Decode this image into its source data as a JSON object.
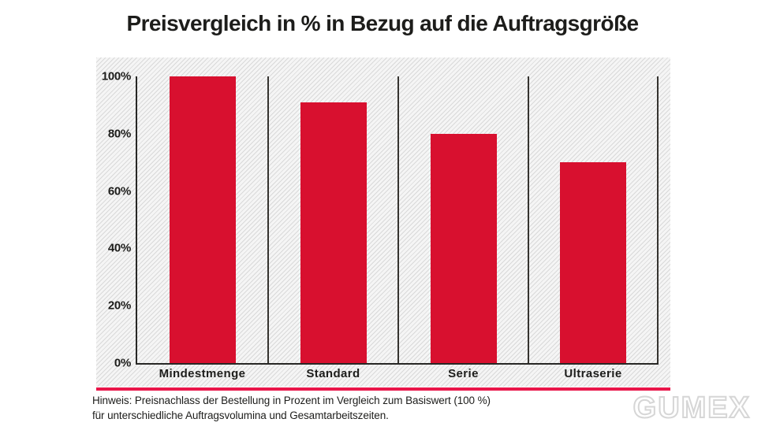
{
  "title": "Preisvergleich in % in Bezug auf die Auftragsgröße",
  "chart_data": {
    "type": "bar",
    "title": "Preisvergleich in % in Bezug auf die Auftragsgröße",
    "categories": [
      "Mindestmenge",
      "Standard",
      "Serie",
      "Ultraserie"
    ],
    "values": [
      100,
      91,
      80,
      70
    ],
    "unit": "%",
    "xlabel": "",
    "ylabel": "",
    "ylim": [
      0,
      100
    ],
    "yticks": [
      0,
      20,
      40,
      60,
      80,
      100
    ],
    "ytick_labels": [
      "0%",
      "20%",
      "40%",
      "60%",
      "80%",
      "100%"
    ],
    "legend_position": "none",
    "grid": "off",
    "plot_background": "diagonal-hatch",
    "bar_color": "#d8102f"
  },
  "footer": {
    "note_line1": "Hinweis: Preisnachlass der Bestellung in Prozent im Vergleich zum Basiswert (100 %)",
    "note_line2": "für unterschiedliche Auftragsvolumina und Gesamtarbeitszeiten.",
    "brand": "GUMEX"
  },
  "colors": {
    "bar": "#d8102f",
    "rule": "#e9164a",
    "text": "#1d1d1b",
    "axis": "#272725"
  }
}
